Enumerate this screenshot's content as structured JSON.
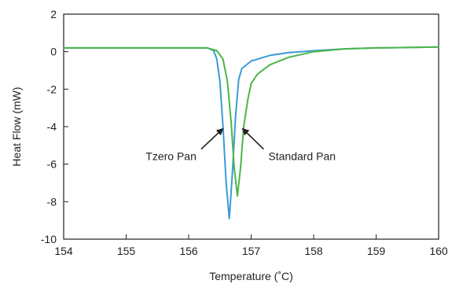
{
  "chart_data": {
    "type": "line",
    "title": "",
    "xlabel": "Temperature (˚C)",
    "ylabel": "Heat Flow (mW)",
    "xlim": [
      154,
      160
    ],
    "ylim": [
      -10,
      2
    ],
    "x_ticks": [
      154,
      155,
      156,
      157,
      158,
      159,
      160
    ],
    "y_ticks": [
      2,
      0,
      -2,
      -4,
      -6,
      -8,
      -10
    ],
    "grid": false,
    "legend": "none",
    "series": [
      {
        "color": "#3a9bd5",
        "points": [
          [
            154.0,
            0.2
          ],
          [
            155.0,
            0.2
          ],
          [
            156.0,
            0.2
          ],
          [
            156.3,
            0.2
          ],
          [
            156.4,
            0.05
          ],
          [
            156.45,
            -0.4
          ],
          [
            156.5,
            -1.6
          ],
          [
            156.55,
            -4.0
          ],
          [
            156.6,
            -7.0
          ],
          [
            156.65,
            -8.9
          ],
          [
            156.7,
            -6.5
          ],
          [
            156.75,
            -3.5
          ],
          [
            156.8,
            -1.5
          ],
          [
            156.85,
            -0.9
          ],
          [
            157.0,
            -0.5
          ],
          [
            157.3,
            -0.2
          ],
          [
            157.6,
            -0.05
          ],
          [
            158.0,
            0.05
          ],
          [
            158.5,
            0.15
          ],
          [
            159.0,
            0.2
          ],
          [
            160.0,
            0.25
          ]
        ]
      },
      {
        "color": "#4cb548",
        "points": [
          [
            154.0,
            0.2
          ],
          [
            155.0,
            0.2
          ],
          [
            156.0,
            0.2
          ],
          [
            156.3,
            0.2
          ],
          [
            156.45,
            0.05
          ],
          [
            156.55,
            -0.4
          ],
          [
            156.62,
            -1.6
          ],
          [
            156.68,
            -3.8
          ],
          [
            156.73,
            -6.2
          ],
          [
            156.78,
            -7.7
          ],
          [
            156.83,
            -6.2
          ],
          [
            156.88,
            -4.0
          ],
          [
            156.95,
            -2.5
          ],
          [
            157.0,
            -1.7
          ],
          [
            157.1,
            -1.2
          ],
          [
            157.3,
            -0.7
          ],
          [
            157.6,
            -0.3
          ],
          [
            158.0,
            0.0
          ],
          [
            158.5,
            0.15
          ],
          [
            159.0,
            0.2
          ],
          [
            160.0,
            0.25
          ]
        ]
      }
    ],
    "annotations": [
      {
        "text": "Tzero Pan",
        "arrow_to": [
          156.55,
          -4.1
        ],
        "arrow_from": [
          156.2,
          -5.2
        ]
      },
      {
        "text": "Standard Pan",
        "arrow_to": [
          156.86,
          -4.1
        ],
        "arrow_from": [
          157.2,
          -5.2
        ]
      }
    ]
  }
}
